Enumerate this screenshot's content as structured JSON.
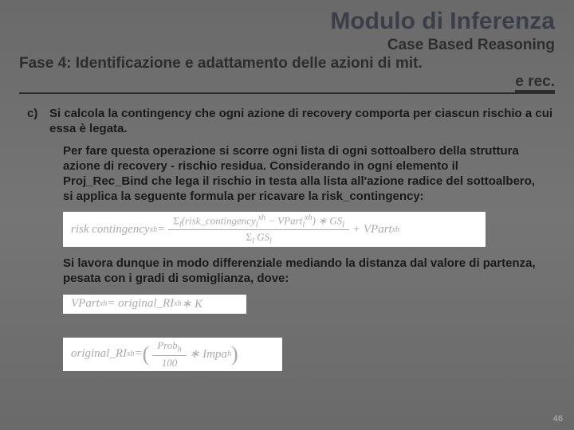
{
  "title": "Modulo di Inferenza",
  "subtitle": "Case Based Reasoning",
  "phase_line1": "Fase 4: Identificazione e adattamento delle azioni di mit.",
  "phase_line2": "e rec.",
  "item_marker": "c)",
  "item_text": "Si calcola la contingency che ogni azione di recovery comporta per ciascun rischio a cui essa è legata.",
  "para1": "Per fare questa operazione si scorre ogni lista di ogni sottoalbero della struttura azione di recovery - rischio residua. Considerando in ogni elemento il Proj_Rec_Bind che lega il rischio in testa alla lista all'azione radice del sottoalbero, si applica la seguente formula per ricavare la risk_contingency:",
  "para2": "Si lavora dunque in modo differenziale mediando la distanza dal valore di partenza, pesata con i gradi di somiglianza, dove:",
  "page_number": "46",
  "f1_lhs": "risk contingency",
  "f1_sub": "xh",
  "f1_eq": " = ",
  "f1_num_a": "Σ",
  "f1_num_a_sub": "l",
  "f1_num_b": "(risk_contingency",
  "f1_num_b_sub": "l",
  "f1_num_b_sup": "xh",
  "f1_num_c": " − VPart",
  "f1_num_c_sub": "l",
  "f1_num_c_sup": "xh",
  "f1_num_d": ") ∗ GS",
  "f1_num_d_sub": "l",
  "f1_den_a": "Σ",
  "f1_den_a_sub": "l",
  "f1_den_b": " GS",
  "f1_den_b_sub": "l",
  "f1_tail": " + VPart",
  "f1_tail_sub": "xh",
  "f2_lhs": "VPart",
  "f2_sub": "xh",
  "f2_mid": " = original_RI",
  "f2_sub2": "xh",
  "f2_tail": " ∗ K",
  "f3_lhs": "original_RI",
  "f3_sub": "xh",
  "f3_eq": " = ",
  "f3_open": "(",
  "f3_num": "Prob",
  "f3_num_sub": "h",
  "f3_den": "100",
  "f3_mid": " ∗ Impa",
  "f3_mid_sub": "h",
  "f3_close": ")"
}
